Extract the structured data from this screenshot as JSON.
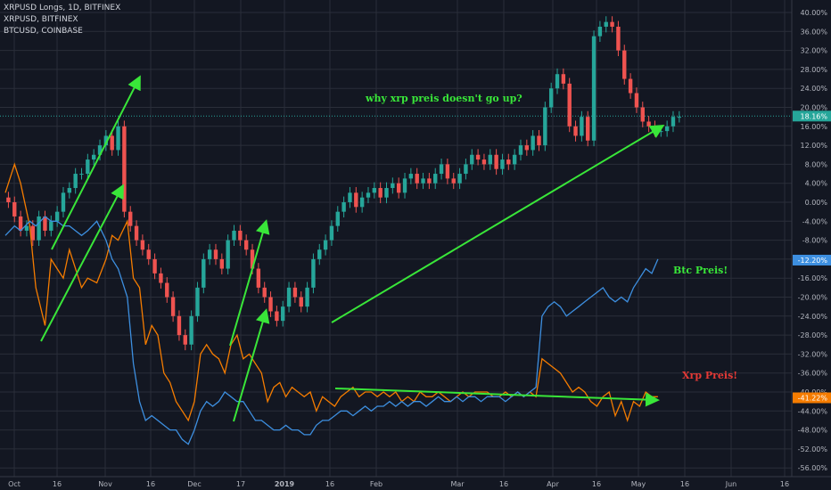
{
  "header": {
    "lines": [
      "XRPUSD Longs, 1D, BITFINEX",
      "XRPUSD, BITFINEX",
      "BTCUSD, COINBASE"
    ]
  },
  "annotations": {
    "question": "why xrp preis doesn't go up?",
    "btc": "Btc Preis!",
    "xrp": "Xrp Preis!"
  },
  "colors": {
    "background": "#131722",
    "grid": "#2a2e39",
    "axis_text": "#b2b5be",
    "candle_up": "#26a69a",
    "candle_down": "#ef5350",
    "btc_line": "#3d8fe0",
    "xrp_line": "#f57c00",
    "arrow": "#39e639",
    "question_text": "#39e639",
    "btc_text": "#39e639",
    "xrp_text": "#e53935",
    "price_line": "#26a69a"
  },
  "axis": {
    "y_labels": [
      "40.00%",
      "36.00%",
      "32.00%",
      "28.00%",
      "24.00%",
      "20.00%",
      "16.00%",
      "12.00%",
      "8.00%",
      "4.00%",
      "0.00%",
      "-4.00%",
      "-8.00%",
      "-12.00%",
      "-16.00%",
      "-20.00%",
      "-24.00%",
      "-28.00%",
      "-32.00%",
      "-36.00%",
      "-40.00%",
      "-44.00%",
      "-48.00%",
      "-52.00%",
      "-56.00%"
    ],
    "x_labels": [
      "Oct",
      "16",
      "Nov",
      "16",
      "Dec",
      "17",
      "2019",
      "16",
      "Feb",
      "Mar",
      "16",
      "Apr",
      "16",
      "May",
      "16",
      "Jun",
      "16"
    ]
  },
  "badges": [
    {
      "value": "18.16%",
      "color": "#26a69a"
    },
    {
      "value": "-12.20%",
      "color": "#3d8fe0"
    },
    {
      "value": "-41.22%",
      "color": "#f57c00"
    }
  ],
  "chart_data": {
    "type": "line",
    "ylim": [
      -58,
      42
    ],
    "y_unit": "%",
    "series": [
      {
        "name": "XRPUSD Longs, 1D, BITFINEX",
        "style": "candles",
        "x": [
          1,
          3,
          5,
          7,
          9,
          11,
          13,
          15,
          17,
          19,
          21,
          23,
          25,
          27,
          29,
          31,
          33,
          35,
          37,
          39,
          41,
          43,
          45,
          47,
          49,
          51,
          53,
          55,
          57,
          59,
          61,
          63,
          65,
          67,
          69,
          71,
          73,
          75,
          77,
          79,
          81,
          83,
          85,
          87,
          89,
          91,
          93,
          95,
          97,
          99,
          101,
          103,
          105,
          107,
          109,
          111,
          113,
          115,
          117,
          119,
          121,
          123,
          125,
          127,
          129,
          131,
          133,
          135,
          137,
          139,
          141,
          143,
          145,
          147,
          149,
          151,
          153,
          155,
          157,
          159,
          161,
          163,
          165,
          167,
          169,
          171,
          173,
          175,
          177,
          179,
          181,
          183,
          185,
          187,
          189,
          191,
          193,
          195,
          197,
          199,
          201,
          203,
          205,
          207,
          209,
          211,
          213,
          215,
          217,
          219,
          221
        ],
        "close": [
          0,
          -3,
          -6,
          -5,
          -8,
          -3,
          -6,
          -4,
          -2,
          2,
          3,
          6,
          6,
          9,
          10,
          12,
          14,
          11,
          16,
          -2,
          -5,
          -8,
          -10,
          -12,
          -15,
          -17,
          -20,
          -24,
          -28,
          -30,
          -24,
          -18,
          -12,
          -10,
          -12,
          -14,
          -8,
          -6,
          -8,
          -10,
          -14,
          -18,
          -20,
          -23,
          -25,
          -22,
          -18,
          -20,
          -22,
          -18,
          -12,
          -10,
          -8,
          -5,
          -2,
          0,
          2,
          -1,
          1,
          2,
          3,
          1,
          3,
          4,
          2,
          5,
          6,
          4,
          5,
          4,
          6,
          8,
          5,
          4,
          6,
          8,
          10,
          9,
          8,
          10,
          7,
          9,
          8,
          10,
          12,
          11,
          14,
          12,
          20,
          24,
          27,
          25,
          16,
          14,
          18,
          13,
          35,
          37,
          38,
          37,
          32,
          26,
          23,
          20,
          17,
          16,
          15,
          15,
          16,
          18,
          18
        ]
      },
      {
        "name": "XRPUSD, BITFINEX",
        "style": "line",
        "x": [
          0,
          3,
          5,
          8,
          10,
          13,
          15,
          17,
          19,
          21,
          23,
          25,
          27,
          30,
          33,
          35,
          37,
          40,
          42,
          44,
          46,
          48,
          50,
          52,
          54,
          56,
          58,
          60,
          62,
          64,
          66,
          68,
          70,
          72,
          74,
          76,
          78,
          80,
          82,
          84,
          86,
          88,
          90,
          92,
          94,
          96,
          98,
          100,
          102,
          104,
          106,
          108,
          110,
          112,
          114,
          116,
          118,
          120,
          122,
          124,
          126,
          128,
          130,
          132,
          134,
          136,
          138,
          140,
          142,
          144,
          146,
          148,
          150,
          152,
          154,
          156,
          158,
          160,
          162,
          164,
          166,
          168,
          170,
          172,
          174,
          176,
          178,
          180,
          182,
          184,
          186,
          188,
          190,
          192,
          194,
          196,
          198,
          200,
          202,
          204,
          206,
          208,
          210,
          212,
          214
        ],
        "y": [
          2,
          8,
          4,
          -5,
          -18,
          -26,
          -12,
          -14,
          -16,
          -10,
          -14,
          -18,
          -16,
          -17,
          -12,
          -7,
          -8,
          -4,
          -16,
          -18,
          -30,
          -26,
          -28,
          -36,
          -38,
          -42,
          -44,
          -46,
          -42,
          -32,
          -30,
          -32,
          -33,
          -36,
          -30,
          -28,
          -33,
          -32,
          -34,
          -36,
          -42,
          -39,
          -38,
          -41,
          -39,
          -40,
          -41,
          -40,
          -44,
          -41,
          -42,
          -43,
          -41,
          -40,
          -39,
          -41,
          -40,
          -40,
          -41,
          -40,
          -41,
          -40,
          -42,
          -41,
          -42,
          -40,
          -41,
          -41,
          -40,
          -41,
          -42,
          -41,
          -40,
          -41,
          -40,
          -40,
          -40,
          -41,
          -41,
          -40,
          -41,
          -40,
          -41,
          -40,
          -41,
          -33,
          -34,
          -35,
          -36,
          -38,
          -40,
          -39,
          -40,
          -42,
          -43,
          -41,
          -40,
          -45,
          -42,
          -46,
          -42,
          -43,
          -40,
          -41,
          -41
        ]
      },
      {
        "name": "BTCUSD, COINBASE",
        "style": "line",
        "x": [
          0,
          3,
          5,
          8,
          10,
          13,
          15,
          17,
          19,
          21,
          23,
          25,
          27,
          30,
          33,
          35,
          37,
          40,
          42,
          44,
          46,
          48,
          50,
          52,
          54,
          56,
          58,
          60,
          62,
          64,
          66,
          68,
          70,
          72,
          74,
          76,
          78,
          80,
          82,
          84,
          86,
          88,
          90,
          92,
          94,
          96,
          98,
          100,
          102,
          104,
          106,
          108,
          110,
          112,
          114,
          116,
          118,
          120,
          122,
          124,
          126,
          128,
          130,
          132,
          134,
          136,
          138,
          140,
          142,
          144,
          146,
          148,
          150,
          152,
          154,
          156,
          158,
          160,
          162,
          164,
          166,
          168,
          170,
          172,
          174,
          176,
          178,
          180,
          182,
          184,
          186,
          188,
          190,
          192,
          194,
          196,
          198,
          200,
          202,
          204,
          206,
          208,
          210,
          212,
          214
        ],
        "y": [
          -7,
          -5,
          -6,
          -4,
          -5,
          -3,
          -4,
          -4,
          -5,
          -5,
          -6,
          -7,
          -6,
          -4,
          -8,
          -12,
          -14,
          -20,
          -34,
          -42,
          -46,
          -45,
          -46,
          -47,
          -48,
          -48,
          -50,
          -51,
          -48,
          -44,
          -42,
          -43,
          -42,
          -40,
          -41,
          -42,
          -42,
          -44,
          -46,
          -46,
          -47,
          -48,
          -48,
          -47,
          -48,
          -48,
          -49,
          -49,
          -47,
          -46,
          -46,
          -45,
          -44,
          -44,
          -45,
          -44,
          -43,
          -44,
          -43,
          -43,
          -42,
          -43,
          -42,
          -43,
          -42,
          -42,
          -43,
          -42,
          -41,
          -42,
          -42,
          -41,
          -42,
          -41,
          -41,
          -42,
          -41,
          -41,
          -41,
          -42,
          -41,
          -40,
          -41,
          -40,
          -39,
          -24,
          -22,
          -21,
          -22,
          -24,
          -23,
          -22,
          -21,
          -20,
          -19,
          -18,
          -20,
          -21,
          -20,
          -21,
          -18,
          -16,
          -14,
          -15,
          -12
        ]
      }
    ],
    "x_axis": "date (Oct 2018 – Jun 2019, daily)"
  }
}
